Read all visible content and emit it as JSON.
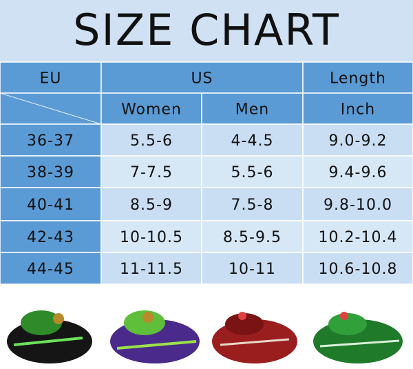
{
  "header": {
    "title": "SIZE CHART"
  },
  "table": {
    "top_headers": [
      "EU",
      "US",
      "Length"
    ],
    "sub_headers": [
      "Women",
      "Men",
      "Inch"
    ],
    "rows": [
      [
        "36-37",
        "5.5-6",
        "4-4.5",
        "9.0-9.2"
      ],
      [
        "38-39",
        "7-7.5",
        "5.5-6",
        "9.4-9.6"
      ],
      [
        "40-41",
        "8.5-9",
        "7.5-8",
        "9.8-10.0"
      ],
      [
        "42-43",
        "10-10.5",
        "8.5-9.5",
        "10.2-10.4"
      ],
      [
        "44-45",
        "11-11.5",
        "10-11",
        "10.6-10.8"
      ]
    ]
  }
}
